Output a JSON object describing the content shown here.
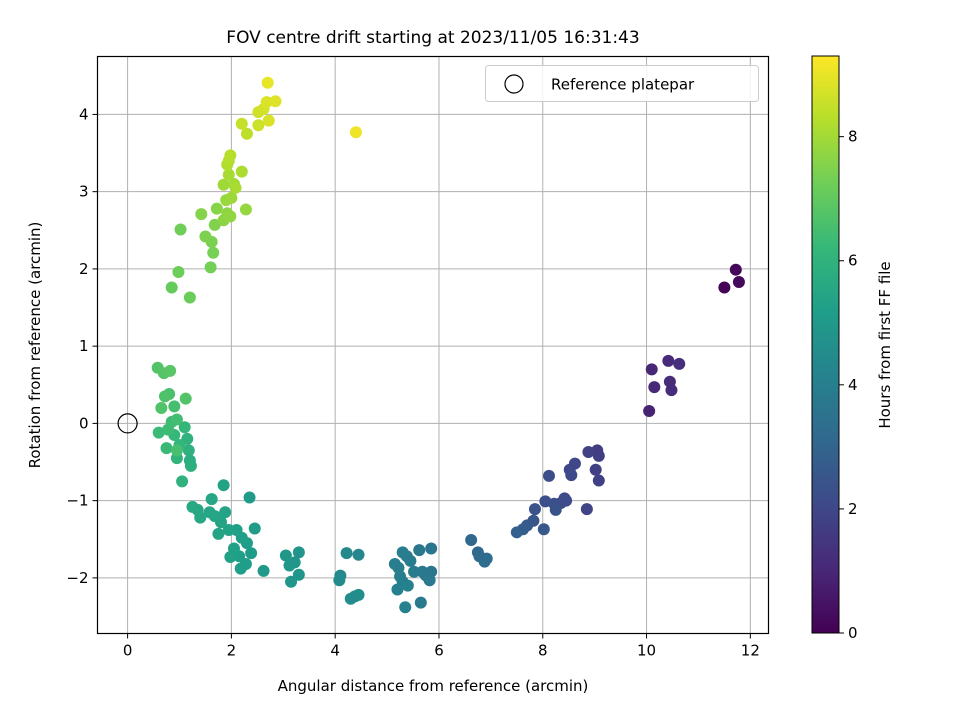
{
  "chart_data": {
    "type": "scatter",
    "title": "FOV centre drift starting at 2023/11/05 16:31:43",
    "xlabel": "Angular distance from reference (arcmin)",
    "ylabel": "Rotation from reference (arcmin)",
    "xlim": [
      -0.58,
      12.35
    ],
    "ylim": [
      -2.72,
      4.75
    ],
    "xticks": [
      "0",
      "2",
      "4",
      "6",
      "8",
      "10",
      "12"
    ],
    "yticks": [
      "−2",
      "−1",
      "0",
      "1",
      "2",
      "3",
      "4"
    ],
    "grid": true,
    "legend": {
      "position": "top-right",
      "entries": [
        "Reference platepar"
      ]
    },
    "reference_point": {
      "x": 0,
      "y": 0
    },
    "colorbar": {
      "label": "Hours from first FF file",
      "range": [
        0,
        9.3
      ],
      "ticks": [
        "0",
        "2",
        "4",
        "6",
        "8"
      ],
      "colormap": "viridis",
      "colormap_stops": [
        "#440154",
        "#482878",
        "#3e4989",
        "#31688e",
        "#26828e",
        "#1f9e89",
        "#35b779",
        "#6ece58",
        "#b5de2b",
        "#fde725"
      ]
    },
    "points": [
      {
        "x": 11.5,
        "y": 1.76,
        "t": 0.1
      },
      {
        "x": 11.72,
        "y": 1.99,
        "t": 0.15
      },
      {
        "x": 11.78,
        "y": 1.83,
        "t": 0.2
      },
      {
        "x": 10.05,
        "y": 0.16,
        "t": 0.9
      },
      {
        "x": 10.1,
        "y": 0.7,
        "t": 1.0
      },
      {
        "x": 10.15,
        "y": 0.47,
        "t": 1.05
      },
      {
        "x": 10.42,
        "y": 0.81,
        "t": 1.1
      },
      {
        "x": 10.45,
        "y": 0.54,
        "t": 1.15
      },
      {
        "x": 10.48,
        "y": 0.43,
        "t": 1.2
      },
      {
        "x": 10.63,
        "y": 0.77,
        "t": 1.25
      },
      {
        "x": 9.05,
        "y": -0.35,
        "t": 1.7
      },
      {
        "x": 9.08,
        "y": -0.42,
        "t": 1.75
      },
      {
        "x": 9.02,
        "y": -0.6,
        "t": 1.8
      },
      {
        "x": 9.08,
        "y": -0.74,
        "t": 1.82
      },
      {
        "x": 8.88,
        "y": -0.37,
        "t": 1.85
      },
      {
        "x": 8.85,
        "y": -1.11,
        "t": 1.9
      },
      {
        "x": 8.62,
        "y": -0.52,
        "t": 2.0
      },
      {
        "x": 8.52,
        "y": -0.6,
        "t": 2.05
      },
      {
        "x": 8.55,
        "y": -0.67,
        "t": 2.08
      },
      {
        "x": 8.42,
        "y": -0.97,
        "t": 2.1
      },
      {
        "x": 8.35,
        "y": -1.03,
        "t": 2.15
      },
      {
        "x": 8.45,
        "y": -1.0,
        "t": 2.18
      },
      {
        "x": 8.12,
        "y": -0.68,
        "t": 2.2
      },
      {
        "x": 8.05,
        "y": -1.01,
        "t": 2.25
      },
      {
        "x": 8.22,
        "y": -1.04,
        "t": 2.3
      },
      {
        "x": 8.25,
        "y": -1.12,
        "t": 2.35
      },
      {
        "x": 7.85,
        "y": -1.11,
        "t": 2.4
      },
      {
        "x": 7.82,
        "y": -1.26,
        "t": 2.5
      },
      {
        "x": 8.02,
        "y": -1.37,
        "t": 2.55
      },
      {
        "x": 7.7,
        "y": -1.32,
        "t": 2.6
      },
      {
        "x": 7.62,
        "y": -1.37,
        "t": 2.7
      },
      {
        "x": 7.5,
        "y": -1.41,
        "t": 2.8
      },
      {
        "x": 6.62,
        "y": -1.51,
        "t": 3.1
      },
      {
        "x": 6.75,
        "y": -1.67,
        "t": 3.15
      },
      {
        "x": 6.78,
        "y": -1.72,
        "t": 3.2
      },
      {
        "x": 6.92,
        "y": -1.75,
        "t": 3.25
      },
      {
        "x": 6.88,
        "y": -1.79,
        "t": 3.3
      },
      {
        "x": 5.85,
        "y": -1.62,
        "t": 3.6
      },
      {
        "x": 5.85,
        "y": -1.92,
        "t": 3.65
      },
      {
        "x": 5.75,
        "y": -1.97,
        "t": 3.7
      },
      {
        "x": 5.62,
        "y": -1.64,
        "t": 3.72
      },
      {
        "x": 5.68,
        "y": -1.92,
        "t": 3.75
      },
      {
        "x": 5.82,
        "y": -2.03,
        "t": 3.78
      },
      {
        "x": 5.65,
        "y": -2.32,
        "t": 3.8
      },
      {
        "x": 5.52,
        "y": -1.92,
        "t": 3.85
      },
      {
        "x": 5.45,
        "y": -1.78,
        "t": 3.88
      },
      {
        "x": 5.38,
        "y": -1.72,
        "t": 3.9
      },
      {
        "x": 5.3,
        "y": -1.67,
        "t": 3.92
      },
      {
        "x": 5.15,
        "y": -1.82,
        "t": 3.95
      },
      {
        "x": 5.22,
        "y": -1.87,
        "t": 3.98
      },
      {
        "x": 5.25,
        "y": -1.98,
        "t": 4.0
      },
      {
        "x": 5.3,
        "y": -2.05,
        "t": 4.02
      },
      {
        "x": 5.2,
        "y": -2.15,
        "t": 4.05
      },
      {
        "x": 5.35,
        "y": -2.38,
        "t": 4.08
      },
      {
        "x": 5.4,
        "y": -2.1,
        "t": 4.1
      },
      {
        "x": 4.45,
        "y": -1.7,
        "t": 4.3
      },
      {
        "x": 4.22,
        "y": -1.68,
        "t": 4.35
      },
      {
        "x": 4.1,
        "y": -1.97,
        "t": 4.4
      },
      {
        "x": 4.08,
        "y": -2.03,
        "t": 4.45
      },
      {
        "x": 4.3,
        "y": -2.27,
        "t": 4.5
      },
      {
        "x": 4.38,
        "y": -2.24,
        "t": 4.52
      },
      {
        "x": 4.45,
        "y": -2.22,
        "t": 4.55
      },
      {
        "x": 3.3,
        "y": -1.67,
        "t": 4.8
      },
      {
        "x": 3.22,
        "y": -1.8,
        "t": 4.82
      },
      {
        "x": 3.3,
        "y": -1.96,
        "t": 4.85
      },
      {
        "x": 3.15,
        "y": -2.05,
        "t": 4.88
      },
      {
        "x": 3.05,
        "y": -1.71,
        "t": 4.9
      },
      {
        "x": 3.12,
        "y": -1.84,
        "t": 4.92
      },
      {
        "x": 2.62,
        "y": -1.91,
        "t": 5.0
      },
      {
        "x": 2.35,
        "y": -0.96,
        "t": 5.05
      },
      {
        "x": 2.45,
        "y": -1.36,
        "t": 5.08
      },
      {
        "x": 2.38,
        "y": -1.68,
        "t": 5.1
      },
      {
        "x": 2.3,
        "y": -1.55,
        "t": 5.12
      },
      {
        "x": 2.28,
        "y": -1.82,
        "t": 5.15
      },
      {
        "x": 2.18,
        "y": -1.88,
        "t": 5.18
      },
      {
        "x": 2.15,
        "y": -1.72,
        "t": 5.2
      },
      {
        "x": 2.2,
        "y": -1.48,
        "t": 5.22
      },
      {
        "x": 2.1,
        "y": -1.38,
        "t": 5.25
      },
      {
        "x": 2.05,
        "y": -1.62,
        "t": 5.28
      },
      {
        "x": 1.98,
        "y": -1.73,
        "t": 5.3
      },
      {
        "x": 1.95,
        "y": -1.38,
        "t": 5.32
      },
      {
        "x": 1.85,
        "y": -0.8,
        "t": 5.35
      },
      {
        "x": 1.88,
        "y": -1.15,
        "t": 5.38
      },
      {
        "x": 1.8,
        "y": -1.28,
        "t": 5.4
      },
      {
        "x": 1.75,
        "y": -1.43,
        "t": 5.42
      },
      {
        "x": 1.68,
        "y": -1.2,
        "t": 5.45
      },
      {
        "x": 1.62,
        "y": -0.98,
        "t": 5.48
      },
      {
        "x": 1.58,
        "y": -1.15,
        "t": 5.5
      },
      {
        "x": 1.4,
        "y": -1.22,
        "t": 5.52
      },
      {
        "x": 1.35,
        "y": -1.12,
        "t": 5.55
      },
      {
        "x": 1.25,
        "y": -1.08,
        "t": 5.58
      },
      {
        "x": 1.2,
        "y": -0.48,
        "t": 5.8
      },
      {
        "x": 1.22,
        "y": -0.55,
        "t": 5.85
      },
      {
        "x": 1.18,
        "y": -0.35,
        "t": 5.9
      },
      {
        "x": 1.05,
        "y": -0.75,
        "t": 5.95
      },
      {
        "x": 1.15,
        "y": -0.2,
        "t": 6.0
      },
      {
        "x": 0.95,
        "y": -0.45,
        "t": 6.05
      },
      {
        "x": 1.0,
        "y": -0.28,
        "t": 6.1
      },
      {
        "x": 1.1,
        "y": -0.05,
        "t": 6.15
      },
      {
        "x": 0.9,
        "y": -0.15,
        "t": 6.2
      },
      {
        "x": 0.75,
        "y": -0.32,
        "t": 6.25
      },
      {
        "x": 0.6,
        "y": -0.12,
        "t": 6.3
      },
      {
        "x": 0.78,
        "y": -0.08,
        "t": 6.35
      },
      {
        "x": 0.85,
        "y": 0.02,
        "t": 6.4
      },
      {
        "x": 0.95,
        "y": 0.05,
        "t": 6.45
      },
      {
        "x": 0.9,
        "y": 0.22,
        "t": 6.5
      },
      {
        "x": 0.95,
        "y": -0.35,
        "t": 6.55
      },
      {
        "x": 0.8,
        "y": 0.38,
        "t": 6.6
      },
      {
        "x": 0.72,
        "y": 0.35,
        "t": 6.65
      },
      {
        "x": 0.65,
        "y": 0.2,
        "t": 6.7
      },
      {
        "x": 1.12,
        "y": 0.32,
        "t": 6.72
      },
      {
        "x": 0.58,
        "y": 0.72,
        "t": 6.75
      },
      {
        "x": 0.7,
        "y": 0.65,
        "t": 6.8
      },
      {
        "x": 0.82,
        "y": 0.68,
        "t": 6.85
      },
      {
        "x": 0.85,
        "y": 1.76,
        "t": 7.1
      },
      {
        "x": 1.2,
        "y": 1.63,
        "t": 7.15
      },
      {
        "x": 0.98,
        "y": 1.96,
        "t": 7.2
      },
      {
        "x": 1.02,
        "y": 2.51,
        "t": 7.25
      },
      {
        "x": 1.6,
        "y": 2.02,
        "t": 7.3
      },
      {
        "x": 1.65,
        "y": 2.21,
        "t": 7.35
      },
      {
        "x": 1.62,
        "y": 2.35,
        "t": 7.4
      },
      {
        "x": 1.5,
        "y": 2.42,
        "t": 7.45
      },
      {
        "x": 1.68,
        "y": 2.57,
        "t": 7.5
      },
      {
        "x": 1.42,
        "y": 2.71,
        "t": 7.55
      },
      {
        "x": 1.72,
        "y": 2.78,
        "t": 7.6
      },
      {
        "x": 1.85,
        "y": 2.63,
        "t": 7.65
      },
      {
        "x": 1.92,
        "y": 2.72,
        "t": 7.7
      },
      {
        "x": 1.98,
        "y": 2.68,
        "t": 7.75
      },
      {
        "x": 2.28,
        "y": 2.77,
        "t": 7.8
      },
      {
        "x": 1.9,
        "y": 2.89,
        "t": 7.85
      },
      {
        "x": 2.0,
        "y": 2.92,
        "t": 7.9
      },
      {
        "x": 1.85,
        "y": 3.09,
        "t": 7.95
      },
      {
        "x": 2.05,
        "y": 3.1,
        "t": 8.0
      },
      {
        "x": 1.95,
        "y": 3.22,
        "t": 8.05
      },
      {
        "x": 2.08,
        "y": 3.05,
        "t": 8.1
      },
      {
        "x": 2.2,
        "y": 3.26,
        "t": 8.15
      },
      {
        "x": 1.92,
        "y": 3.35,
        "t": 8.2
      },
      {
        "x": 1.95,
        "y": 3.4,
        "t": 8.25
      },
      {
        "x": 1.98,
        "y": 3.47,
        "t": 8.3
      },
      {
        "x": 2.3,
        "y": 3.75,
        "t": 8.4
      },
      {
        "x": 2.2,
        "y": 3.88,
        "t": 8.5
      },
      {
        "x": 2.52,
        "y": 3.86,
        "t": 8.6
      },
      {
        "x": 2.52,
        "y": 4.03,
        "t": 8.65
      },
      {
        "x": 2.62,
        "y": 4.07,
        "t": 8.7
      },
      {
        "x": 2.72,
        "y": 3.92,
        "t": 8.75
      },
      {
        "x": 2.68,
        "y": 4.16,
        "t": 8.8
      },
      {
        "x": 2.85,
        "y": 4.17,
        "t": 8.85
      },
      {
        "x": 2.7,
        "y": 4.41,
        "t": 9.0
      },
      {
        "x": 4.4,
        "y": 3.77,
        "t": 9.1
      }
    ]
  }
}
